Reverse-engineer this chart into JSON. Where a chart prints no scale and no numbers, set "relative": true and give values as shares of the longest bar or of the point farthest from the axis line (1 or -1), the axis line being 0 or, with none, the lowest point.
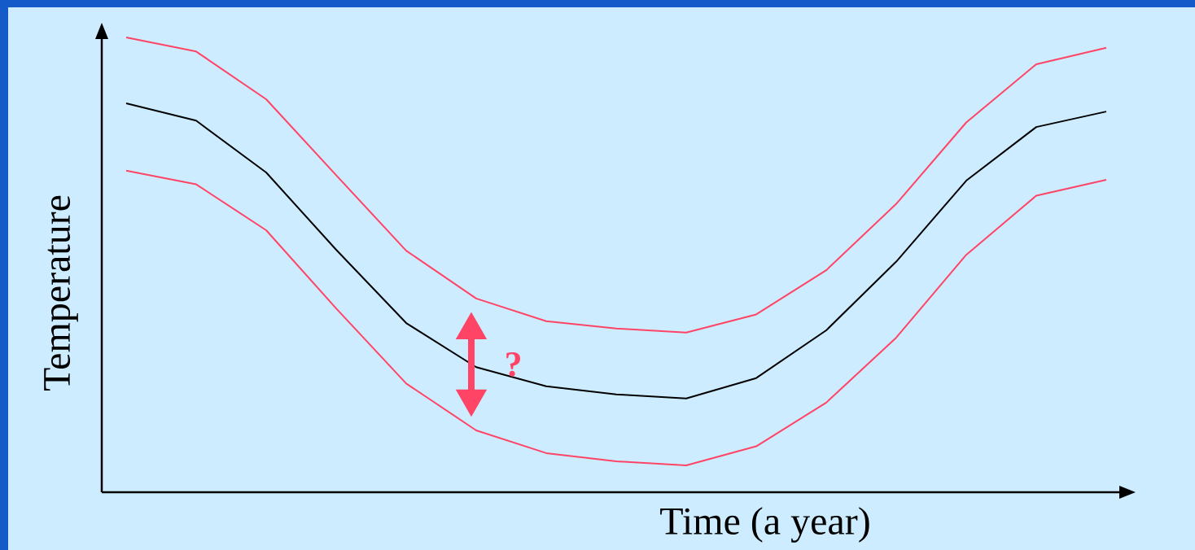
{
  "chart_data": {
    "type": "line",
    "relative": true,
    "xlabel": "Time (a year)",
    "ylabel": "Temperature",
    "annotations": [
      "?"
    ],
    "categories": [
      null,
      null,
      null,
      null,
      null,
      null,
      null,
      null,
      null,
      null,
      null,
      null,
      null,
      null,
      null
    ],
    "series": [
      {
        "color": "#000000",
        "values": [
          0.855,
          0.817,
          0.703,
          0.533,
          0.372,
          0.275,
          0.233,
          0.215,
          0.206,
          0.251,
          0.356,
          0.507,
          0.685,
          0.803,
          0.837
        ]
      },
      {
        "color": "#ff4466",
        "values": [
          1.0,
          0.969,
          0.864,
          0.697,
          0.531,
          0.426,
          0.376,
          0.36,
          0.351,
          0.391,
          0.488,
          0.634,
          0.813,
          0.941,
          0.977
        ]
      },
      {
        "color": "#ff4466",
        "values": [
          0.707,
          0.677,
          0.576,
          0.404,
          0.239,
          0.136,
          0.086,
          0.068,
          0.059,
          0.101,
          0.197,
          0.34,
          0.522,
          0.652,
          0.687
        ]
      }
    ]
  }
}
